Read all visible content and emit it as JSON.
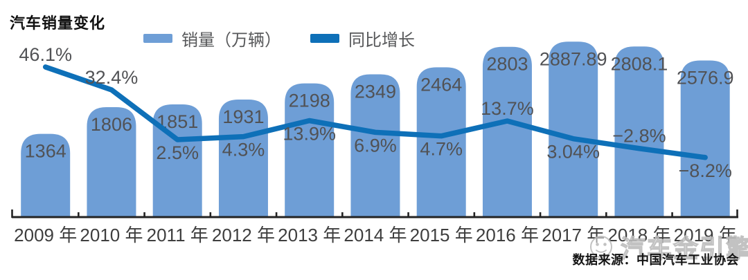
{
  "title": "汽车销量变化",
  "legend": {
    "items": [
      {
        "label": "销量（万辆）",
        "color": "#6E9ED6",
        "marker": "bar-swatch"
      },
      {
        "label": "同比增长",
        "color": "#0E70B8",
        "marker": "line-swatch"
      }
    ]
  },
  "source": "数据来源：中国汽车工业协会",
  "watermark": "汽车金引擎",
  "colors": {
    "bar": "#6E9ED6",
    "line": "#0E70B8",
    "axis": "#232323",
    "value_label": "#515255",
    "axis_label": "#3E3E3E",
    "watermark_stroke": "#BCBCBC"
  },
  "chart_data": {
    "type": "combo (bar + line)",
    "categories": [
      "2009 年",
      "2010 年",
      "2011 年",
      "2012 年",
      "2013 年",
      "2014 年",
      "2015 年",
      "2016 年",
      "2017 年",
      "2018 年",
      "2019 年"
    ],
    "series": [
      {
        "name": "销量（万辆）",
        "type": "bar",
        "color": "#6E9ED6",
        "values": [
          1364,
          1806,
          1851,
          1931,
          2198,
          2349,
          2464,
          2803,
          2887.89,
          2808.1,
          2576.9
        ],
        "value_labels": [
          "1364",
          "1806",
          "1851",
          "1931",
          "2198",
          "2349",
          "2464",
          "2803",
          "2887.89",
          "2808.1",
          "2576.9"
        ]
      },
      {
        "name": "同比增长",
        "type": "line",
        "color": "#0E70B8",
        "unit": "percent",
        "values": [
          46.1,
          32.4,
          2.5,
          4.3,
          13.9,
          6.9,
          4.7,
          13.7,
          3.04,
          -2.8,
          -8.2
        ],
        "value_labels": [
          "46.1%",
          "32.4%",
          "2.5%",
          "4.3%",
          "13.9%",
          "6.9%",
          "4.7%",
          "13.7%",
          "3.04%",
          "−2.8%",
          "−8.2%"
        ],
        "label_side": [
          "above",
          "above",
          "below",
          "below",
          "below",
          "below",
          "below",
          "above",
          "below",
          "above",
          "below"
        ]
      }
    ],
    "x_axis": {
      "suffix": "年",
      "tick_marks": "between categories and at both ends"
    },
    "y_axis": "hidden (values labeled directly on bars and line points)",
    "grid": false,
    "legend_position": "top-center"
  }
}
